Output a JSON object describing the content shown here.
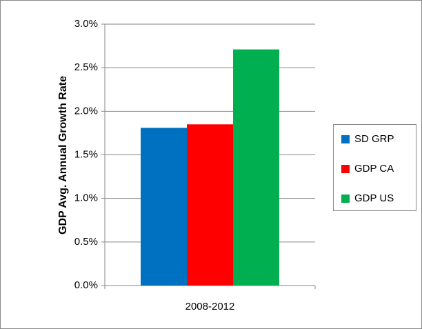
{
  "chart_data": {
    "type": "bar",
    "ylabel": "GDP Avg. Annual Growth Rate",
    "categories": [
      "2008-2012"
    ],
    "series": [
      {
        "name": "SD GRP",
        "color": "#0070c0",
        "values": [
          1.81
        ]
      },
      {
        "name": "GDP CA",
        "color": "#ff0000",
        "values": [
          1.85
        ]
      },
      {
        "name": "GDP US",
        "color": "#00b050",
        "values": [
          2.71
        ]
      }
    ],
    "ylim": [
      0,
      3
    ],
    "yticks": [
      {
        "value": 0,
        "label": "0.0%"
      },
      {
        "value": 0.5,
        "label": "0.5%"
      },
      {
        "value": 1,
        "label": "1.0%"
      },
      {
        "value": 1.5,
        "label": "1.5%"
      },
      {
        "value": 2,
        "label": "2.0%"
      },
      {
        "value": 2.5,
        "label": "2.5%"
      },
      {
        "value": 3,
        "label": "3.0%"
      }
    ],
    "grid": true,
    "legend": "right"
  }
}
